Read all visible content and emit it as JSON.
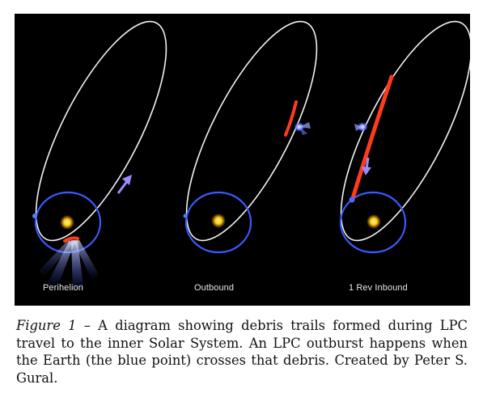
{
  "figure": {
    "panels": [
      {
        "label": "Perihelion"
      },
      {
        "label": "Outbound"
      },
      {
        "label": "1 Rev Inbound"
      }
    ]
  },
  "caption": {
    "figure_ref": "Figure 1",
    "text": " – A diagram showing debris trails formed during LPC travel to the inner Solar System.  An LPC outburst happens when the Earth (the blue point) crosses that debris. Created by Peter S. Gural."
  },
  "colors": {
    "background": "#000000",
    "orbit": "#ffffff",
    "earth_orbit": "#3a5cff",
    "sun": "#ffd21a",
    "debris": "#ff3b1f",
    "comet": "#9a8cff"
  }
}
